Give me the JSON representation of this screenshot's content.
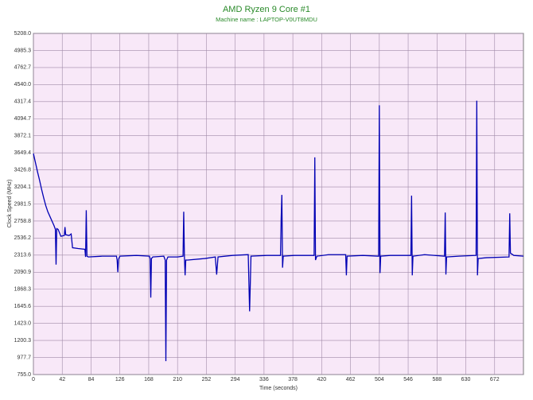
{
  "chart_data": {
    "type": "line",
    "title": "AMD Ryzen 9 Core #1",
    "subtitle": "Machine name : LAPTOP-V0UT8MDU",
    "xlabel": "Time (seconds)",
    "ylabel": "Clock Speed (MHz)",
    "grid": true,
    "xlim": [
      0,
      714
    ],
    "ylim": [
      755.0,
      5208.0
    ],
    "xticks": [
      0,
      42,
      84,
      126,
      168,
      210,
      252,
      294,
      336,
      378,
      420,
      462,
      504,
      546,
      588,
      630,
      672
    ],
    "yticks": [
      {
        "value": 755.0,
        "label": "755.0"
      },
      977.7,
      1200.3,
      {
        "value": 1423.0,
        "label": "1423.0"
      },
      1645.6,
      1868.3,
      2090.9,
      2313.6,
      2536.2,
      2758.8,
      2981.5,
      3204.1,
      3426.8,
      3649.4,
      3872.1,
      4094.7,
      4317.4,
      {
        "value": 4540.0,
        "label": "4540.0"
      },
      4762.7,
      4985.3,
      {
        "value": 5208.0,
        "label": "5208.0"
      }
    ],
    "x": [
      0,
      3,
      6,
      9,
      12,
      15,
      18,
      21,
      24,
      27,
      30,
      32,
      33,
      34,
      36,
      40,
      45,
      46,
      47,
      52,
      55,
      57,
      65,
      75,
      76,
      77,
      78,
      80,
      100,
      121,
      122,
      123,
      124,
      126,
      150,
      169,
      170,
      171,
      172,
      174,
      190,
      192,
      193,
      194,
      196,
      210,
      218,
      219,
      220,
      221,
      222,
      225,
      250,
      265,
      267,
      269,
      290,
      313,
      315,
      317,
      340,
      360,
      361,
      362,
      363,
      364,
      380,
      409,
      410,
      411,
      413,
      430,
      455,
      456,
      457,
      480,
      503,
      504,
      505,
      506,
      520,
      550,
      551,
      552,
      553,
      570,
      599,
      600,
      601,
      602,
      620,
      645,
      646,
      647,
      648,
      660,
      693,
      694,
      695,
      700,
      714
    ],
    "series": [
      {
        "name": "Core #1",
        "color": "#0000b4",
        "values": [
          3640,
          3520,
          3400,
          3290,
          3170,
          3060,
          2960,
          2880,
          2820,
          2760,
          2700,
          2650,
          2190,
          2660,
          2650,
          2560,
          2570,
          2680,
          2580,
          2570,
          2590,
          2410,
          2400,
          2390,
          2290,
          2900,
          2300,
          2290,
          2300,
          2300,
          2250,
          2090,
          2260,
          2300,
          2310,
          2300,
          2270,
          1760,
          2270,
          2290,
          2300,
          2250,
          930,
          2250,
          2290,
          2290,
          2300,
          2880,
          2300,
          2050,
          2250,
          2250,
          2270,
          2290,
          2060,
          2290,
          2310,
          2320,
          1580,
          2300,
          2310,
          2310,
          2800,
          3100,
          2150,
          2300,
          2310,
          2310,
          3590,
          2250,
          2300,
          2320,
          2320,
          2050,
          2300,
          2310,
          2300,
          4270,
          2080,
          2300,
          2310,
          2310,
          3090,
          2050,
          2300,
          2320,
          2300,
          2870,
          2060,
          2290,
          2300,
          2310,
          4330,
          2050,
          2270,
          2280,
          2290,
          2860,
          2340,
          2310,
          2300
        ]
      }
    ]
  }
}
